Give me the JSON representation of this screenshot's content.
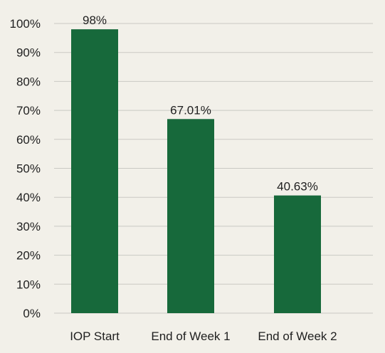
{
  "chart_data": {
    "type": "bar",
    "categories": [
      "IOP Start",
      "End of Week 1",
      "End of Week 2"
    ],
    "values": [
      98,
      67.01,
      40.63
    ],
    "data_labels": [
      "98%",
      "67.01%",
      "40.63%"
    ],
    "title": "",
    "xlabel": "",
    "ylabel": "",
    "ylim": [
      0,
      100
    ],
    "y_ticks": [
      0,
      10,
      20,
      30,
      40,
      50,
      60,
      70,
      80,
      90,
      100
    ],
    "y_tick_labels": [
      "0%",
      "10%",
      "20%",
      "30%",
      "40%",
      "50%",
      "60%",
      "70%",
      "80%",
      "90%",
      "100%"
    ],
    "grid": true,
    "legend": "none"
  },
  "colors": {
    "background": "#f2f0e9",
    "bar": "#17693b",
    "grid": "#c9c9c3",
    "text": "#1f1f1f"
  }
}
